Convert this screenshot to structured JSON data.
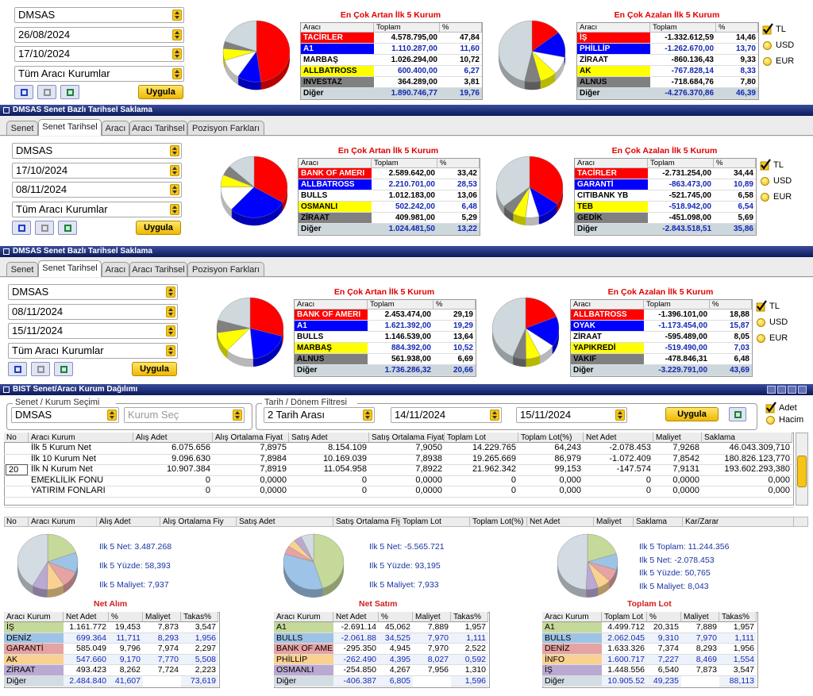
{
  "panels": [
    {
      "form": {
        "stock": "DMSAS",
        "date_start": "26/08/2024",
        "date_end": "17/10/2024",
        "broker": "Tüm Aracı Kurumlar",
        "apply": "Uygula"
      },
      "gainers": {
        "title": "En Çok Artan İlk 5 Kurum",
        "headers": [
          "Aracı",
          "Toplam",
          "%"
        ],
        "rows": [
          [
            "TACİRLER",
            "4.578.795,00",
            "47,84"
          ],
          [
            "A1",
            "1.110.287,00",
            "11,60"
          ],
          [
            "MARBAŞ",
            "1.026.294,00",
            "10,72"
          ],
          [
            "ALLBATROSS",
            "600.400,00",
            "6,27"
          ],
          [
            "INVESTAZ",
            "364.289,00",
            "3,81"
          ],
          [
            "Diğer",
            "1.890.746,77",
            "19,76"
          ]
        ]
      },
      "losers": {
        "title": "En Çok Azalan İlk 5 Kurum",
        "headers": [
          "Aracı",
          "Toplam",
          "%"
        ],
        "rows": [
          [
            "İŞ",
            "-1.332.612,59",
            "14,46"
          ],
          [
            "PHİLLİP",
            "-1.262.670,00",
            "13,70"
          ],
          [
            "ZİRAAT",
            "-860.136,43",
            "9,33"
          ],
          [
            "AK",
            "-767.828,14",
            "8,33"
          ],
          [
            "ALNUS",
            "-718.684,76",
            "7,80"
          ],
          [
            "Diğer",
            "-4.276.370,86",
            "46,39"
          ]
        ]
      },
      "currencies": [
        "TL",
        "USD",
        "EUR"
      ],
      "checked_currency": 0
    },
    {
      "window_title": "DMSAS Senet Bazlı Tarihsel Saklama",
      "tabs": [
        "Senet",
        "Senet Tarihsel",
        "Aracı",
        "Aracı Tarihsel",
        "Pozisyon Farkları"
      ],
      "active_tab": 1,
      "form": {
        "stock": "DMSAS",
        "date_start": "17/10/2024",
        "date_end": "08/11/2024",
        "broker": "Tüm Aracı Kurumlar",
        "apply": "Uygula"
      },
      "gainers": {
        "title": "En Çok Artan İlk 5 Kurum",
        "headers": [
          "Aracı",
          "Toplam",
          "%"
        ],
        "rows": [
          [
            "BANK OF AMERI",
            "2.589.642,00",
            "33,42"
          ],
          [
            "ALLBATROSS",
            "2.210.701,00",
            "28,53"
          ],
          [
            "BULLS",
            "1.012.183,00",
            "13,06"
          ],
          [
            "OSMANLI",
            "502.242,00",
            "6,48"
          ],
          [
            "ZİRAAT",
            "409.981,00",
            "5,29"
          ],
          [
            "Diğer",
            "1.024.481,50",
            "13,22"
          ]
        ]
      },
      "losers": {
        "title": "En Çok Azalan İlk 5 Kurum",
        "headers": [
          "Aracı",
          "Toplam",
          "%"
        ],
        "rows": [
          [
            "TACİRLER",
            "-2.731.254,00",
            "34,44"
          ],
          [
            "GARANTİ",
            "-863.473,00",
            "10,89"
          ],
          [
            "CITIBANK YB",
            "-521.745,00",
            "6,58"
          ],
          [
            "TEB",
            "-518.942,00",
            "6,54"
          ],
          [
            "GEDİK",
            "-451.098,00",
            "5,69"
          ],
          [
            "Diğer",
            "-2.843.518,51",
            "35,86"
          ]
        ]
      },
      "currencies": [
        "TL",
        "USD",
        "EUR"
      ],
      "checked_currency": 0
    },
    {
      "window_title": "DMSAS Senet Bazlı Tarihsel Saklama",
      "tabs": [
        "Senet",
        "Senet Tarihsel",
        "Aracı",
        "Aracı Tarihsel",
        "Pozisyon Farkları"
      ],
      "active_tab": 1,
      "form": {
        "stock": "DMSAS",
        "date_start": "08/11/2024",
        "date_end": "15/11/2024",
        "broker": "Tüm Aracı Kurumlar",
        "apply": "Uygula"
      },
      "gainers": {
        "title": "En Çok Artan İlk 5 Kurum",
        "headers": [
          "Aracı",
          "Toplam",
          "%"
        ],
        "rows": [
          [
            "BANK OF AMERI",
            "2.453.474,00",
            "29,19"
          ],
          [
            "A1",
            "1.621.392,00",
            "19,29"
          ],
          [
            "BULLS",
            "1.146.539,00",
            "13,64"
          ],
          [
            "MARBAŞ",
            "884.392,00",
            "10,52"
          ],
          [
            "ALNUS",
            "561.938,00",
            "6,69"
          ],
          [
            "Diğer",
            "1.736.286,32",
            "20,66"
          ]
        ]
      },
      "losers": {
        "title": "En Çok Azalan İlk 5 Kurum",
        "headers": [
          "Aracı",
          "Toplam",
          "%"
        ],
        "rows": [
          [
            "ALLBATROSS",
            "-1.396.101,00",
            "18,88"
          ],
          [
            "OYAK",
            "-1.173.454,00",
            "15,87"
          ],
          [
            "ZİRAAT",
            "-595.489,00",
            "8,05"
          ],
          [
            "YAPIKREDİ",
            "-519.490,00",
            "7,03"
          ],
          [
            "VAKIF",
            "-478.846,31",
            "6,48"
          ],
          [
            "Diğer",
            "-3.229.791,00",
            "43,69"
          ]
        ]
      },
      "currencies": [
        "TL",
        "USD",
        "EUR"
      ],
      "checked_currency": 0
    }
  ],
  "slice_colors": [
    "#ff0000",
    "#0000ff",
    "#ffffff",
    "#ffff00",
    "#808080",
    "#cfd8dc"
  ],
  "distribution": {
    "window_title": "BIST Senet/Aracı Kurum Dağılımı",
    "stock_group": "Senet / Kurum Seçimi",
    "stock": "DMSAS",
    "broker_placeholder": "Kurum Seç",
    "date_group": "Tarih / Dönem Filtresi",
    "period": "2 Tarih Arası",
    "date_start": "14/11/2024",
    "date_end": "15/11/2024",
    "apply": "Uygula",
    "modes": [
      "Adet",
      "Hacim"
    ],
    "checked_mode": 0,
    "table": {
      "headers": [
        "No",
        "Aracı Kurum",
        "Alış Adet",
        "Alış Ortalama Fiyat",
        "Satış Adet",
        "Satış Ortalama Fiyat",
        "Toplam Lot",
        "Toplam Lot(%)",
        "Net Adet",
        "Maliyet",
        "Saklama"
      ],
      "rows": [
        [
          null,
          "İlk 5 Kurum Net",
          "6.075.656",
          "7,8975",
          "8.154.109",
          "7,9050",
          "14.229.765",
          "64,243",
          "-2.078.453",
          "7,9268",
          "46.043.309,710"
        ],
        [
          null,
          "İlk 10 Kurum Net",
          "9.096.630",
          "7,8984",
          "10.169.039",
          "7,8938",
          "19.265.669",
          "86,979",
          "-1.072.409",
          "7,8542",
          "180.826.123,770"
        ],
        [
          "20",
          "İlk N Kurum Net",
          "10.907.384",
          "7,8919",
          "11.054.958",
          "7,8922",
          "21.962.342",
          "99,153",
          "-147.574",
          "7,9131",
          "193.602.293,380"
        ],
        [
          null,
          "EMEKLİLİK FONU",
          "0",
          "0,0000",
          "0",
          "0,0000",
          "0",
          "0,000",
          "0",
          "0,0000",
          "0,000"
        ],
        [
          null,
          "YATIRIM FONLARI",
          "0",
          "0,0000",
          "0",
          "0,0000",
          "0",
          "0,000",
          "0",
          "0,0000",
          "0,000"
        ]
      ]
    },
    "detail_headers": [
      "No",
      "Aracı Kurum",
      "Alış Adet",
      "Alış Ortalama Fiy",
      "Satış Adet",
      "Satış Ortalama Fiy",
      "Toplam Lot",
      "Toplam Lot(%)",
      "Net Adet",
      "Maliyet",
      "Saklama",
      "Kar/Zarar"
    ],
    "section_colors": [
      "#c5d99a",
      "#9dc3e6",
      "#e6a3a3",
      "#f9d191",
      "#b9a9d3",
      "#d3dbe3"
    ],
    "sections": [
      {
        "stats": [
          "Ilk 5 Net: 3.487.268",
          "Ilk 5 Yüzde: 58,393",
          "Ilk 5 Maliyet: 7,937"
        ],
        "label": "Net Alım",
        "headers": [
          "Aracı Kurum",
          "Net Adet",
          "%",
          "Maliyet",
          "Takas%"
        ],
        "rows": [
          [
            "İŞ",
            "1.161.772",
            "19,453",
            "7,873",
            "3,547"
          ],
          [
            "DENİZ",
            "699.364",
            "11,711",
            "8,293",
            "1,956"
          ],
          [
            "GARANTİ",
            "585.049",
            "9,796",
            "7,974",
            "2,297"
          ],
          [
            "AK",
            "547.660",
            "9,170",
            "7,770",
            "5,508"
          ],
          [
            "ZİRAAT",
            "493.423",
            "8,262",
            "7,724",
            "2,223"
          ],
          [
            "Diğer",
            "2.484.840",
            "41,607",
            null,
            "73,619"
          ]
        ]
      },
      {
        "stats": [
          "Ilk 5 Net: -5.565.721",
          "Ilk 5 Yüzde: 93,195",
          "Ilk 5 Maliyet: 7,933"
        ],
        "label": "Net Satım",
        "headers": [
          "Aracı Kurum",
          "Net Adet",
          "%",
          "Maliyet",
          "Takas%"
        ],
        "rows": [
          [
            "A1",
            "-2.691.14",
            "45,062",
            "7,889",
            "1,957"
          ],
          [
            "BULLS",
            "-2.061.88",
            "34,525",
            "7,970",
            "1,111"
          ],
          [
            "BANK OF AME",
            "-295.350",
            "4,945",
            "7,970",
            "2,522"
          ],
          [
            "PHİLLİP",
            "-262.490",
            "4,395",
            "8,027",
            "0,592"
          ],
          [
            "OSMANLI",
            "-254.850",
            "4,267",
            "7,956",
            "1,310"
          ],
          [
            "Diğer",
            "-406.387",
            "6,805",
            null,
            "1,596"
          ]
        ]
      },
      {
        "stats": [
          "Ilk 5 Toplam: 11.244.356",
          "Ilk 5 Net: -2.078.453",
          "Ilk 5 Yüzde: 50,765",
          "Ilk 5 Maliyet: 8,043"
        ],
        "label": "Toplam Lot",
        "headers": [
          "Aracı Kurum",
          "Toplam Lot",
          "%",
          "Maliyet",
          "Takas%"
        ],
        "rows": [
          [
            "A1",
            "4.499.712",
            "20,315",
            "7,889",
            "1,957"
          ],
          [
            "BULLS",
            "2.062.045",
            "9,310",
            "7,970",
            "1,111"
          ],
          [
            "DENİZ",
            "1.633.326",
            "7,374",
            "8,293",
            "1,956"
          ],
          [
            "İNFO",
            "1.600.717",
            "7,227",
            "8,469",
            "1,554"
          ],
          [
            "İŞ",
            "1.448.556",
            "6,540",
            "7,873",
            "3,547"
          ],
          [
            "Diğer",
            "10.905.52",
            "49,235",
            null,
            "88,113"
          ]
        ]
      }
    ]
  }
}
